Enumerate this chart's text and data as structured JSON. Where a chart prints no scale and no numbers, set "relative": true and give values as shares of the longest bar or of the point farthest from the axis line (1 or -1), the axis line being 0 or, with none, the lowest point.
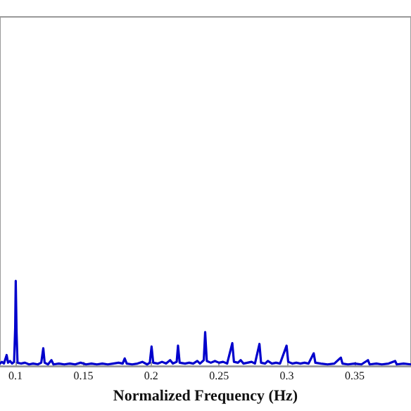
{
  "chart_data": {
    "type": "line",
    "xlabel": "Normalized Frequency (Hz)",
    "relative": true,
    "xlim": [
      0.0886,
      0.3915
    ],
    "xticks": [
      0.1,
      0.15,
      0.2,
      0.25,
      0.3,
      0.35
    ],
    "grid": false,
    "marker": "none",
    "line_style": "solid",
    "series": [
      {
        "color": "#0000cc",
        "x": [
          0.0886,
          0.09,
          0.0915,
          0.0935,
          0.0945,
          0.096,
          0.0975,
          0.099,
          0.0998,
          0.1002,
          0.1008,
          0.1015,
          0.104,
          0.107,
          0.11,
          0.113,
          0.1165,
          0.119,
          0.1205,
          0.1215,
          0.124,
          0.1265,
          0.128,
          0.132,
          0.136,
          0.14,
          0.144,
          0.148,
          0.152,
          0.156,
          0.16,
          0.164,
          0.168,
          0.172,
          0.176,
          0.179,
          0.1805,
          0.182,
          0.186,
          0.19,
          0.1935,
          0.197,
          0.199,
          0.2003,
          0.2015,
          0.205,
          0.208,
          0.211,
          0.214,
          0.216,
          0.2188,
          0.2198,
          0.221,
          0.225,
          0.228,
          0.231,
          0.234,
          0.236,
          0.2388,
          0.2398,
          0.241,
          0.244,
          0.247,
          0.25,
          0.253,
          0.256,
          0.2598,
          0.261,
          0.264,
          0.266,
          0.268,
          0.271,
          0.274,
          0.2765,
          0.2798,
          0.281,
          0.284,
          0.286,
          0.289,
          0.292,
          0.295,
          0.2998,
          0.301,
          0.304,
          0.307,
          0.31,
          0.313,
          0.316,
          0.3198,
          0.321,
          0.325,
          0.33,
          0.335,
          0.3398,
          0.341,
          0.345,
          0.35,
          0.355,
          0.3598,
          0.361,
          0.366,
          0.37,
          0.375,
          0.3798,
          0.381,
          0.386,
          0.3915
        ],
        "values": [
          0.03,
          0.05,
          0.03,
          0.13,
          0.04,
          0.06,
          0.03,
          0.05,
          0.45,
          1.0,
          0.4,
          0.04,
          0.03,
          0.04,
          0.02,
          0.03,
          0.02,
          0.04,
          0.21,
          0.04,
          0.02,
          0.07,
          0.02,
          0.03,
          0.02,
          0.03,
          0.02,
          0.04,
          0.02,
          0.03,
          0.02,
          0.03,
          0.02,
          0.03,
          0.04,
          0.03,
          0.09,
          0.03,
          0.02,
          0.03,
          0.05,
          0.02,
          0.04,
          0.23,
          0.04,
          0.03,
          0.05,
          0.03,
          0.07,
          0.03,
          0.05,
          0.24,
          0.04,
          0.03,
          0.04,
          0.03,
          0.06,
          0.03,
          0.07,
          0.4,
          0.06,
          0.04,
          0.06,
          0.04,
          0.05,
          0.03,
          0.27,
          0.05,
          0.04,
          0.07,
          0.03,
          0.04,
          0.05,
          0.03,
          0.26,
          0.04,
          0.03,
          0.06,
          0.03,
          0.04,
          0.03,
          0.24,
          0.05,
          0.03,
          0.04,
          0.03,
          0.04,
          0.03,
          0.15,
          0.04,
          0.03,
          0.02,
          0.03,
          0.1,
          0.03,
          0.02,
          0.03,
          0.02,
          0.07,
          0.02,
          0.03,
          0.02,
          0.03,
          0.06,
          0.02,
          0.03,
          0.02
        ]
      }
    ]
  }
}
